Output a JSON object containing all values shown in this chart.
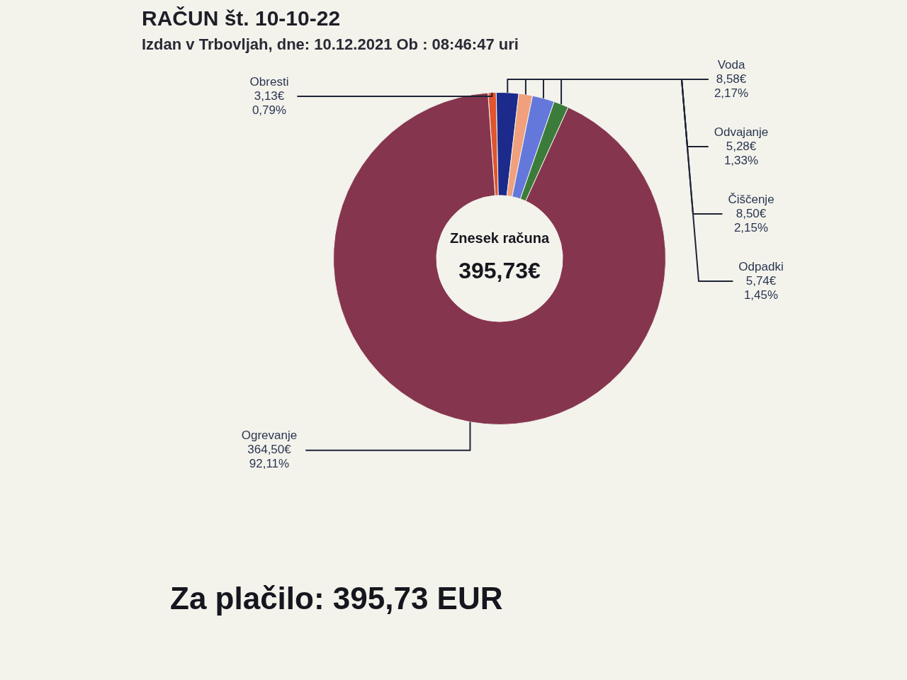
{
  "chart_data": {
    "type": "donut",
    "title": "RAČUN št. 10-10-22",
    "subtitle": "Izdan v Trbovljah, dne: 10.12.2021 Ob : 08:46:47 uri",
    "categories": [
      "Obresti",
      "Voda",
      "Odvajanje",
      "Čiščenje",
      "Odpadki",
      "Ogrevanje"
    ],
    "values": [
      3.13,
      8.58,
      5.28,
      8.5,
      5.74,
      364.5
    ],
    "colors": [
      "#e0552e",
      "#1c2a8c",
      "#f0a07c",
      "#6478dc",
      "#3c7c3a",
      "#86354f"
    ],
    "value_labels": [
      "3,13€\n0,79%",
      "8,58€\n2,17%",
      "5,28€\n1,33%",
      "8,50€\n2,15%",
      "5,74€\n1,45%",
      "364,50€\n92,11%"
    ],
    "annotations": [
      "Znesek računa",
      "395,73€",
      "Za plačilo: 395,73 EUR"
    ],
    "legend": false
  }
}
